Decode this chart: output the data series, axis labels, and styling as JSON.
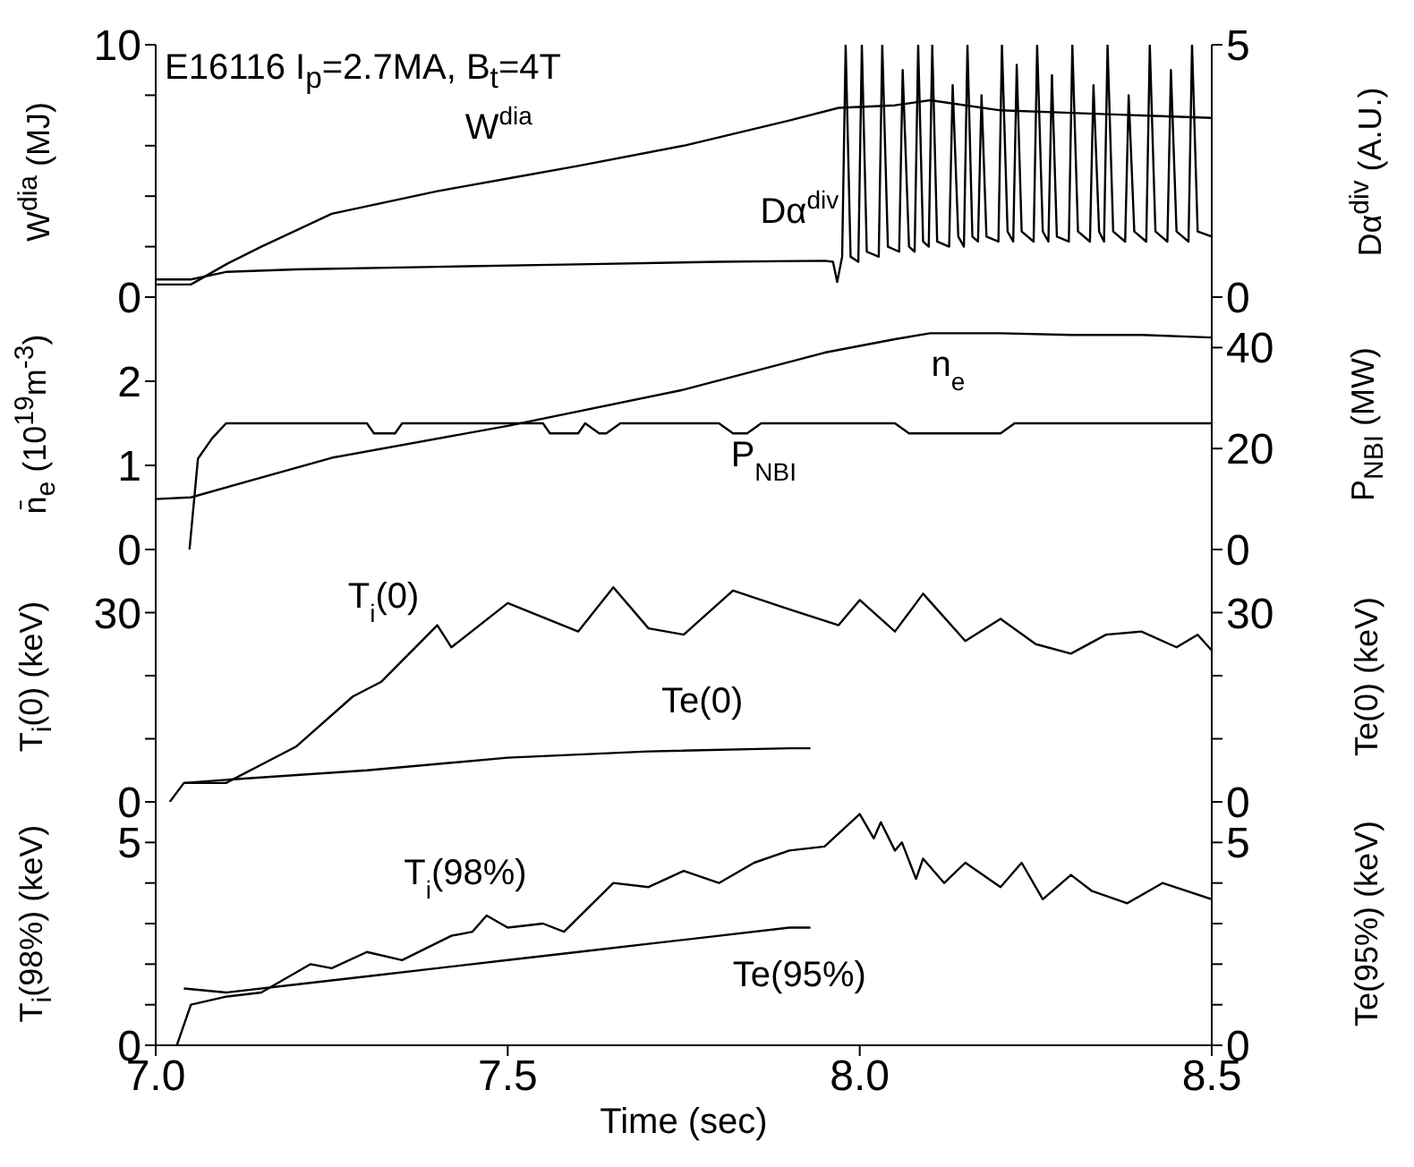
{
  "chart_data": [
    {
      "type": "line",
      "ylabel": "W$^{dia}$ (MJ)",
      "y2label": "Dα$^{div}$ (A.U.)",
      "annotations": [
        "E16116 I$_{p}$=2.7MA, B$_{t}$=4T"
      ],
      "marker": "none",
      "tick_labels": "y",
      "xlim": [
        7.0,
        8.5
      ],
      "xticks": [
        {
          "value": 7,
          "label": null
        },
        {
          "value": 7.5,
          "label": null
        },
        {
          "value": 8,
          "label": null
        },
        {
          "value": 8.5,
          "label": null
        }
      ],
      "ylim": [
        0,
        10
      ],
      "yticks": [
        0,
        {
          "value": 2,
          "label": null
        },
        {
          "value": 4,
          "label": null
        },
        {
          "value": 6,
          "label": null
        },
        {
          "value": 8,
          "label": null
        },
        10
      ],
      "y2lim": [
        0,
        5
      ],
      "y2ticks": [
        0,
        5
      ],
      "series": [
        {
          "name": "W$^{dia}$",
          "color": "#000000",
          "axis": "y",
          "x": [
            7.0,
            7.05,
            7.1,
            7.15,
            7.25,
            7.4,
            7.5,
            7.6,
            7.75,
            7.9,
            7.97,
            8.05,
            8.1,
            8.2,
            8.3,
            8.4,
            8.5
          ],
          "values": [
            0.5,
            0.5,
            1.3,
            2.0,
            3.3,
            4.2,
            4.7,
            5.2,
            6.0,
            7.0,
            7.5,
            7.6,
            7.8,
            7.4,
            7.3,
            7.2,
            7.1
          ]
        },
        {
          "name": "Dα$^{div}$",
          "color": "#000000",
          "axis": "y2",
          "x": [
            7.0,
            7.05,
            7.1,
            7.2,
            7.4,
            7.6,
            7.8,
            7.95,
            7.962,
            7.968,
            7.975,
            7.98,
            7.987,
            7.998,
            8.003,
            8.01,
            8.027,
            8.032,
            8.04,
            8.056,
            8.061,
            8.07,
            8.078,
            8.083,
            8.09,
            8.098,
            8.103,
            8.11,
            8.127,
            8.132,
            8.14,
            8.148,
            8.153,
            8.16,
            8.168,
            8.173,
            8.18,
            8.197,
            8.202,
            8.21,
            8.218,
            8.223,
            8.23,
            8.247,
            8.252,
            8.26,
            8.268,
            8.273,
            8.28,
            8.297,
            8.302,
            8.31,
            8.327,
            8.332,
            8.34,
            8.347,
            8.352,
            8.36,
            8.377,
            8.382,
            8.39,
            8.407,
            8.412,
            8.42,
            8.437,
            8.442,
            8.45,
            8.467,
            8.472,
            8.48,
            8.5
          ],
          "values": [
            0.35,
            0.35,
            0.5,
            0.55,
            0.6,
            0.65,
            0.7,
            0.72,
            0.7,
            0.3,
            0.8,
            5,
            0.8,
            0.7,
            5,
            0.9,
            0.8,
            5,
            1.0,
            0.9,
            4.5,
            1.0,
            0.9,
            5,
            1.1,
            1.0,
            5,
            1.1,
            1.0,
            4.2,
            1.2,
            1.0,
            5,
            1.2,
            1.1,
            4.0,
            1.2,
            1.1,
            5,
            1.3,
            1.1,
            4.6,
            1.3,
            1.1,
            5,
            1.3,
            1.1,
            4.4,
            1.2,
            1.1,
            5,
            1.3,
            1.1,
            4.2,
            1.3,
            1.1,
            5,
            1.3,
            1.1,
            4.0,
            1.3,
            1.1,
            5,
            1.3,
            1.1,
            4.5,
            1.3,
            1.1,
            5,
            1.3,
            1.2
          ]
        }
      ]
    },
    {
      "type": "line",
      "ylabel": "n̄$_{e}$ (10$^{19}$m$^{-3}$)",
      "y2label": "P$_{NBI}$ (MW)",
      "marker": "none",
      "tick_labels": "y",
      "xlim": [
        7.0,
        8.5
      ],
      "xticks": [
        {
          "value": 7,
          "label": null
        },
        {
          "value": 7.5,
          "label": null
        },
        {
          "value": 8,
          "label": null
        },
        {
          "value": 8.5,
          "label": null
        }
      ],
      "ylim": [
        0,
        3
      ],
      "yticks": [
        0,
        1,
        2
      ],
      "y2lim": [
        0,
        50
      ],
      "y2ticks": [
        0,
        20,
        40
      ],
      "series": [
        {
          "name": "n$_{e}$",
          "color": "#000000",
          "axis": "y",
          "x": [
            7.0,
            7.05,
            7.25,
            7.5,
            7.75,
            7.95,
            8.05,
            8.1,
            8.2,
            8.3,
            8.4,
            8.5
          ],
          "values": [
            0.6,
            0.62,
            1.09,
            1.47,
            1.9,
            2.34,
            2.5,
            2.57,
            2.57,
            2.55,
            2.55,
            2.52
          ]
        },
        {
          "name": "P$_{NBI}$",
          "color": "#000000",
          "axis": "y2",
          "x": [
            7.048,
            7.06,
            7.08,
            7.1,
            7.3,
            7.31,
            7.34,
            7.35,
            7.55,
            7.56,
            7.6,
            7.61,
            7.63,
            7.64,
            7.66,
            7.8,
            7.82,
            7.84,
            7.86,
            8.05,
            8.07,
            8.2,
            8.22,
            8.5
          ],
          "values": [
            0,
            18,
            22,
            25,
            25,
            23,
            23,
            25,
            25,
            23,
            23,
            25,
            23,
            23,
            25,
            25,
            23,
            23,
            25,
            25,
            23,
            23,
            25,
            25
          ]
        }
      ]
    },
    {
      "type": "line",
      "ylabel": "T$_{i}$(0) (keV)",
      "y2label": "Te(0) (keV)",
      "marker": "none",
      "tick_labels": "y",
      "xlim": [
        7.0,
        8.5
      ],
      "xticks": [
        {
          "value": 7,
          "label": null
        },
        {
          "value": 7.5,
          "label": null
        },
        {
          "value": 8,
          "label": null
        },
        {
          "value": 8.5,
          "label": null
        }
      ],
      "ylim": [
        0,
        40
      ],
      "yticks": [
        0,
        {
          "value": 10,
          "label": null
        },
        {
          "value": 20,
          "label": null
        },
        30
      ],
      "y2lim": [
        0,
        40
      ],
      "y2ticks": [
        0,
        {
          "value": 10,
          "label": null
        },
        {
          "value": 20,
          "label": null
        },
        30
      ],
      "series": [
        {
          "name": "T$_{i}$(0)",
          "color": "#000000",
          "axis": "y",
          "x": [
            7.02,
            7.04,
            7.1,
            7.2,
            7.28,
            7.32,
            7.4,
            7.42,
            7.5,
            7.6,
            7.65,
            7.7,
            7.75,
            7.82,
            7.9,
            7.97,
            8.0,
            8.05,
            8.09,
            8.15,
            8.2,
            8.25,
            8.3,
            8.35,
            8.4,
            8.45,
            8.48,
            8.5
          ],
          "values": [
            0,
            3,
            3,
            8.8,
            16.7,
            19,
            28,
            24.5,
            31.5,
            27,
            34,
            27.5,
            26.5,
            33.5,
            30.5,
            28,
            32,
            27,
            33,
            25.5,
            29,
            25,
            23.5,
            26.5,
            27,
            24.5,
            26.5,
            24
          ]
        },
        {
          "name": "Te(0)",
          "color": "#000000",
          "axis": "y2",
          "x": [
            7.04,
            7.1,
            7.3,
            7.5,
            7.7,
            7.9,
            7.93
          ],
          "values": [
            3,
            3.5,
            5,
            7,
            8,
            8.5,
            8.5
          ]
        }
      ]
    },
    {
      "type": "line",
      "xlabel": "Time (sec)",
      "ylabel": "T$_{i}$(98%) (keV)",
      "y2label": "Te(95%) (keV)",
      "marker": "none",
      "xlim": [
        7.0,
        8.5
      ],
      "xticks": [
        {
          "value": 7,
          "label": "7.0"
        },
        7.5,
        {
          "value": 8,
          "label": "8.0"
        },
        8.5
      ],
      "ylim": [
        0,
        6
      ],
      "yticks": [
        0,
        {
          "value": 1,
          "label": null
        },
        {
          "value": 2,
          "label": null
        },
        {
          "value": 3,
          "label": null
        },
        {
          "value": 4,
          "label": null
        },
        5
      ],
      "y2lim": [
        0,
        6
      ],
      "y2ticks": [
        0,
        {
          "value": 1,
          "label": null
        },
        {
          "value": 2,
          "label": null
        },
        {
          "value": 3,
          "label": null
        },
        {
          "value": 4,
          "label": null
        },
        5
      ],
      "series": [
        {
          "name": "T$_{i}$(98%)",
          "color": "#000000",
          "axis": "y",
          "x": [
            7.03,
            7.05,
            7.1,
            7.15,
            7.22,
            7.25,
            7.3,
            7.35,
            7.42,
            7.45,
            7.47,
            7.5,
            7.55,
            7.58,
            7.65,
            7.7,
            7.75,
            7.8,
            7.85,
            7.9,
            7.95,
            8.0,
            8.02,
            8.03,
            8.05,
            8.06,
            8.08,
            8.09,
            8.12,
            8.15,
            8.2,
            8.23,
            8.26,
            8.3,
            8.33,
            8.38,
            8.43,
            8.5
          ],
          "values": [
            0,
            1.0,
            1.2,
            1.3,
            2.0,
            1.9,
            2.3,
            2.1,
            2.7,
            2.8,
            3.2,
            2.9,
            3.0,
            2.8,
            4.0,
            3.9,
            4.3,
            4.0,
            4.5,
            4.8,
            4.9,
            5.7,
            5.1,
            5.5,
            4.8,
            5.0,
            4.1,
            4.6,
            4.0,
            4.5,
            3.9,
            4.5,
            3.6,
            4.2,
            3.8,
            3.5,
            4.0,
            3.6
          ]
        },
        {
          "name": "Te(95%)",
          "color": "#000000",
          "axis": "y2",
          "x": [
            7.04,
            7.1,
            7.2,
            7.3,
            7.4,
            7.5,
            7.6,
            7.7,
            7.8,
            7.9,
            7.93
          ],
          "values": [
            1.4,
            1.3,
            1.5,
            1.7,
            1.9,
            2.1,
            2.3,
            2.5,
            2.7,
            2.9,
            2.9
          ]
        }
      ]
    }
  ]
}
